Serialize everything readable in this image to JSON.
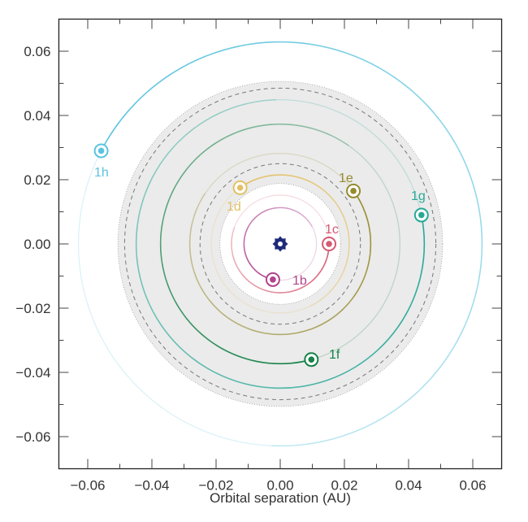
{
  "chart_data": {
    "type": "scatter",
    "title": "",
    "xlabel": "Orbital separation (AU)",
    "ylabel": "",
    "xlim": [
      -0.069,
      0.069
    ],
    "ylim": [
      -0.07,
      0.07
    ],
    "xticks": [
      "−0.06",
      "−0.04",
      "−0.02",
      "0.00",
      "0.02",
      "0.04",
      "0.06"
    ],
    "yticks": [
      "0.06",
      "0.04",
      "0.02",
      "0.00",
      "−0.02",
      "−0.04",
      "−0.06"
    ],
    "grid": false,
    "star": {
      "x": 0,
      "y": 0,
      "color": "#1f2a7a"
    },
    "habitable_zone": {
      "inner_radius": 0.0188,
      "outer_radius": 0.0506,
      "inner_dashed": 0.025,
      "outer_dashed": 0.0485,
      "color": "#ebebeb"
    },
    "planets": [
      {
        "name": "1b",
        "x": -0.0023,
        "y": -0.0111,
        "radius": 0.0113,
        "color": "#b0448f"
      },
      {
        "name": "1c",
        "x": 0.0152,
        "y": 0.0,
        "radius": 0.0152,
        "color": "#d45a72"
      },
      {
        "name": "1d",
        "x": -0.0125,
        "y": 0.0175,
        "radius": 0.0215,
        "color": "#e3c066"
      },
      {
        "name": "1e",
        "x": 0.0228,
        "y": 0.0165,
        "radius": 0.0282,
        "color": "#968b2f"
      },
      {
        "name": "1f",
        "x": 0.0097,
        "y": -0.036,
        "radius": 0.0373,
        "color": "#16824a"
      },
      {
        "name": "1g",
        "x": 0.044,
        "y": 0.009,
        "radius": 0.0449,
        "color": "#27a896"
      },
      {
        "name": "1h",
        "x": -0.0558,
        "y": 0.029,
        "radius": 0.0629,
        "color": "#5cc3df"
      }
    ]
  }
}
